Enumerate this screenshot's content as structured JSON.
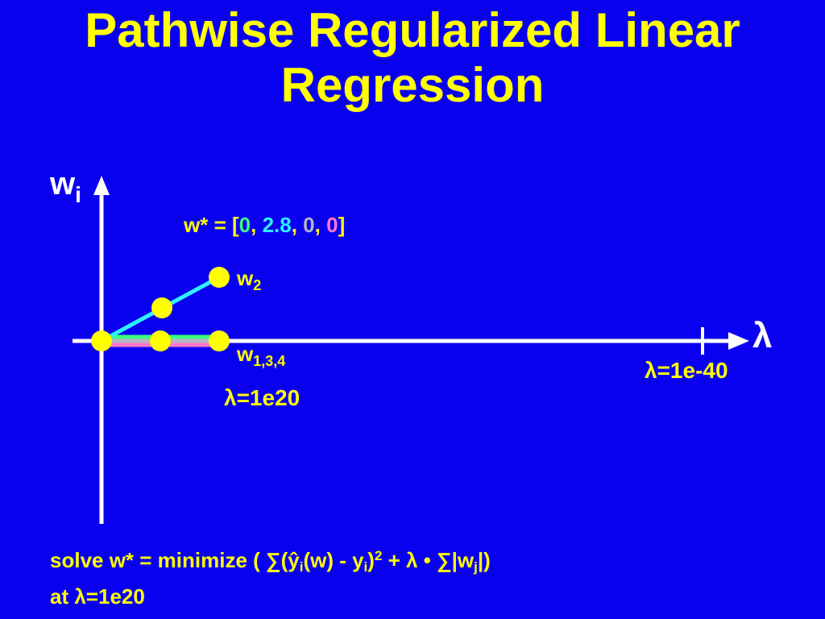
{
  "title": {
    "line1": "Pathwise Regularized Linear",
    "line2": "Regression"
  },
  "axes": {
    "y_label_main": "w",
    "y_label_sub": "i",
    "x_label": "λ"
  },
  "wstar": {
    "prefix": "w* = [",
    "v1": "0",
    "sep1": ", ",
    "v2": "2.8",
    "sep2": ", ",
    "v3": "0",
    "sep3": ", ",
    "v4": "0",
    "suffix": "]"
  },
  "labels": {
    "w2_main": "w",
    "w2_sub": "2",
    "w134_main": "w",
    "w134_sub": "1,3,4",
    "lambda_high": "λ=1e20",
    "lambda_low": "λ=1e-40"
  },
  "formula": {
    "part1": "solve w* = minimize ( ∑(ŷ",
    "sub_i1": "i",
    "part2": "(w) - y",
    "sub_i2": "i",
    "part3": ")",
    "sup_2": "2",
    "part4": " + λ • ∑|w",
    "sub_j": "j",
    "part5": "|)",
    "line2": "at λ=1e20"
  },
  "colors": {
    "background": "#0a00f0",
    "title": "#ffff00",
    "axis": "#ffffff",
    "w1": "#3cff7e",
    "w2": "#2ff0ff",
    "w3": "#b4b4c8",
    "w4": "#ff79c8",
    "points": "#ffff00"
  }
}
